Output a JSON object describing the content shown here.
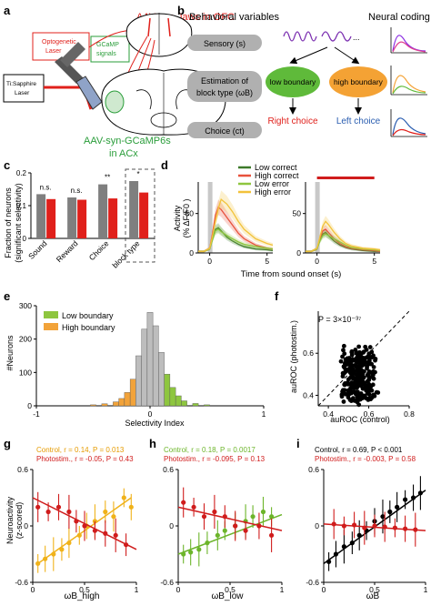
{
  "panels": {
    "a": {
      "letter": "a",
      "ofc_label": "AAV-syn-Jaws in OFC",
      "opto_line1": "Optogenetic",
      "opto_line2": "Laser",
      "gcamp_line1": "GCaMP",
      "gcamp_line2": "signals",
      "laser_line1": "Ti:Sapphire",
      "laser_line2": "Laser",
      "acx_line1": "AAV-syn-GCaMP6s",
      "acx_line2": "in ACx"
    },
    "b": {
      "letter": "b",
      "title_left": "Behavioral variables",
      "title_right": "Neural coding",
      "sensory": "Sensory (s)",
      "estimation_line1": "Estimation of",
      "estimation_line2": "block type (ωB)",
      "choice": "Choice (ct)",
      "low_boundary": "low boundary",
      "high_boundary": "high boundary",
      "right_choice": "Right choice",
      "left_choice": "Left choice",
      "ellipsis": "..."
    },
    "c": {
      "letter": "c",
      "ylabel_line1": "Fraction of neurons",
      "ylabel_line2": "(significant selectivity)"
    },
    "d": {
      "letter": "d",
      "ylabel_line1": "Activity",
      "ylabel_line2": "(% ΔF/F0 )",
      "xlabel": "Time from sound onset (s)"
    },
    "e": {
      "letter": "e",
      "ylabel": "#Neurons",
      "xlabel": "Selectivity Index"
    },
    "f": {
      "letter": "f",
      "ylabel": "auROC (photostim.)",
      "xlabel": "auROC (control)",
      "pvalue": "P = 3×10⁻³⁷"
    },
    "g": {
      "letter": "g",
      "ylabel_line1": "Neuroactivity",
      "ylabel_line2": "(z-scored)",
      "control_stats": "Control, r = 0.14, P = 0.013",
      "photostim_stats": "Photostim., r = -0.05, P = 0.43",
      "xlabel": "ωB_high"
    },
    "h": {
      "letter": "h",
      "control_stats": "Control, r = 0.18, P = 0.0017",
      "photostim_stats": "Photostim., r = -0.095, P = 0.13",
      "xlabel": "ωB_low"
    },
    "i": {
      "letter": "i",
      "control_stats": "Control, r = 0.69, P < 0.001",
      "photostim_stats": "Photostim., r = -0.003, P = 0.58",
      "xlabel": "ωB"
    }
  },
  "colors": {
    "red": "#e0201b",
    "green": "#2a9d3a",
    "gray": "#8c8c8c",
    "dark_green": "#3d7a2a",
    "light_green": "#8ec63f",
    "orange": "#f2a33a",
    "yellow": "#f7c21a"
  },
  "chart_data": [
    {
      "id": "c",
      "type": "bar",
      "categories": [
        "Sound",
        "Reward",
        "Choice",
        "block type"
      ],
      "ylim": [
        0,
        0.2
      ],
      "yticks": [
        0,
        0.1,
        0.2
      ],
      "series": [
        {
          "name": "control",
          "values": [
            0.135,
            0.125,
            0.165,
            0.175
          ],
          "color": "#7f7f7f"
        },
        {
          "name": "photostim.",
          "values": [
            0.12,
            0.118,
            0.122,
            0.14
          ],
          "color": "#e0201b"
        }
      ],
      "significance": [
        "n.s.",
        "n.s.",
        "**",
        "*"
      ]
    },
    {
      "id": "d",
      "type": "line",
      "xlim": [
        -1,
        5.5
      ],
      "ylim": [
        0,
        90
      ],
      "xticks": [
        0,
        5
      ],
      "yticks": [
        0,
        50
      ],
      "legend": [
        "Low correct",
        "High correct",
        "Low error",
        "High error"
      ],
      "legend_colors": [
        "#3d7a2a",
        "#e8523c",
        "#8ec63f",
        "#f2c23a"
      ],
      "subplots": [
        {
          "x": [
            -1,
            -0.5,
            0,
            0.25,
            0.5,
            0.75,
            1,
            1.5,
            2,
            2.5,
            3,
            4,
            5,
            5.5
          ],
          "series": [
            {
              "name": "Low correct",
              "values": [
                2,
                2,
                5,
                18,
                30,
                32,
                28,
                20,
                15,
                11,
                8,
                5,
                4,
                3
              ]
            },
            {
              "name": "High correct",
              "values": [
                2,
                2,
                6,
                25,
                48,
                58,
                55,
                45,
                35,
                25,
                18,
                10,
                6,
                5
              ]
            },
            {
              "name": "Low error",
              "values": [
                2,
                2,
                5,
                17,
                28,
                30,
                27,
                22,
                18,
                14,
                11,
                8,
                6,
                5
              ]
            },
            {
              "name": "High error",
              "values": [
                2,
                2,
                6,
                22,
                40,
                56,
                68,
                62,
                52,
                40,
                30,
                18,
                12,
                10
              ]
            }
          ]
        },
        {
          "x": [
            -1,
            -0.5,
            0,
            0.25,
            0.5,
            0.75,
            1,
            1.5,
            2,
            2.5,
            3,
            4,
            5,
            5.5
          ],
          "series": [
            {
              "name": "Low correct",
              "values": [
                2,
                2,
                5,
                16,
                24,
                26,
                22,
                15,
                10,
                7,
                5,
                3,
                2,
                2
              ]
            },
            {
              "name": "High correct",
              "values": [
                2,
                2,
                5,
                18,
                28,
                30,
                26,
                18,
                12,
                8,
                6,
                4,
                3,
                2
              ]
            },
            {
              "name": "Low error",
              "values": [
                2,
                2,
                5,
                15,
                22,
                24,
                22,
                18,
                14,
                10,
                7,
                5,
                4,
                3
              ]
            },
            {
              "name": "High error",
              "values": [
                2,
                2,
                6,
                20,
                34,
                40,
                36,
                26,
                18,
                12,
                9,
                6,
                5,
                4
              ]
            }
          ],
          "stim_bar": [
            0,
            5
          ]
        }
      ]
    },
    {
      "id": "e",
      "type": "bar",
      "xlim": [
        -1,
        1
      ],
      "ylim": [
        0,
        300
      ],
      "xticks": [
        -1,
        0,
        1
      ],
      "yticks": [
        0,
        100,
        200,
        300
      ],
      "legend": [
        "Low boundary",
        "High boundary"
      ],
      "legend_colors": [
        "#8ec63f",
        "#f2a33a"
      ],
      "bin_centers": [
        -0.5,
        -0.4,
        -0.3,
        -0.25,
        -0.2,
        -0.15,
        -0.1,
        -0.05,
        0,
        0.05,
        0.1,
        0.15,
        0.2,
        0.25,
        0.3,
        0.4,
        0.5
      ],
      "counts": [
        3,
        6,
        12,
        22,
        40,
        80,
        150,
        230,
        280,
        240,
        160,
        95,
        55,
        30,
        15,
        7,
        3
      ],
      "significant": [
        "high",
        "high",
        "high",
        "high",
        "high",
        "high",
        "",
        "",
        "",
        "",
        "",
        "low",
        "low",
        "low",
        "low",
        "low",
        "low"
      ]
    },
    {
      "id": "f",
      "type": "scatter",
      "xlim": [
        0.35,
        0.8
      ],
      "ylim": [
        0.35,
        0.8
      ],
      "xticks": [
        0.4,
        0.6,
        0.8
      ],
      "yticks": [
        0.4,
        0.6
      ],
      "identity_line": true
    },
    {
      "id": "g",
      "type": "scatter",
      "xlim": [
        0,
        1
      ],
      "ylim": [
        -0.6,
        0.6
      ],
      "xticks": [
        0,
        0.5,
        1
      ],
      "yticks": [
        -0.6,
        0,
        0.6
      ],
      "series": [
        {
          "name": "Control",
          "color": "#f0b21a",
          "x": [
            0.05,
            0.12,
            0.2,
            0.28,
            0.35,
            0.45,
            0.52,
            0.6,
            0.7,
            0.78,
            0.88,
            0.95
          ],
          "y": [
            -0.4,
            -0.35,
            -0.3,
            -0.25,
            -0.18,
            -0.1,
            0.0,
            0.05,
            0.15,
            0.1,
            0.3,
            0.2
          ],
          "fit": [
            [
              0.05,
              -0.4
            ],
            [
              0.95,
              0.3
            ]
          ]
        },
        {
          "name": "Photostim.",
          "color": "#d01c1c",
          "x": [
            0.05,
            0.15,
            0.25,
            0.35,
            0.42,
            0.5,
            0.6,
            0.7,
            0.8,
            0.9
          ],
          "y": [
            0.2,
            0.15,
            0.2,
            0.15,
            0.05,
            0.0,
            -0.05,
            -0.08,
            -0.1,
            -0.2
          ],
          "fit": [
            [
              0.0,
              0.3
            ],
            [
              1.0,
              -0.25
            ]
          ]
        }
      ]
    },
    {
      "id": "h",
      "type": "scatter",
      "xlim": [
        0,
        1
      ],
      "ylim": [
        -0.6,
        0.6
      ],
      "xticks": [
        0,
        0.5,
        1
      ],
      "yticks": [
        -0.6,
        0,
        0.6
      ],
      "series": [
        {
          "name": "Control",
          "color": "#6cb52a",
          "x": [
            0.05,
            0.12,
            0.2,
            0.28,
            0.38,
            0.45,
            0.55,
            0.65,
            0.72,
            0.82,
            0.9
          ],
          "y": [
            -0.3,
            -0.28,
            -0.25,
            -0.18,
            -0.1,
            -0.05,
            0.0,
            0.05,
            0.1,
            0.15,
            0.1
          ],
          "fit": [
            [
              0.0,
              -0.3
            ],
            [
              1.0,
              0.12
            ]
          ]
        },
        {
          "name": "Photostim.",
          "color": "#d01c1c",
          "x": [
            0.05,
            0.15,
            0.25,
            0.35,
            0.45,
            0.55,
            0.65,
            0.78,
            0.9
          ],
          "y": [
            0.25,
            0.2,
            0.1,
            0.15,
            0.1,
            0.0,
            -0.05,
            0.0,
            -0.1
          ],
          "fit": [
            [
              0.0,
              0.2
            ],
            [
              1.0,
              -0.05
            ]
          ]
        }
      ]
    },
    {
      "id": "i",
      "type": "scatter",
      "xlim": [
        0,
        1
      ],
      "ylim": [
        -0.6,
        0.6
      ],
      "xticks": [
        0,
        0.5,
        1
      ],
      "yticks": [
        -0.6,
        0,
        0.6
      ],
      "series": [
        {
          "name": "Control",
          "color": "#000000",
          "x": [
            0.05,
            0.12,
            0.2,
            0.28,
            0.35,
            0.42,
            0.5,
            0.58,
            0.65,
            0.72,
            0.8,
            0.88,
            0.95
          ],
          "y": [
            -0.38,
            -0.3,
            -0.22,
            -0.18,
            -0.1,
            -0.05,
            0.05,
            0.1,
            0.15,
            0.2,
            0.28,
            0.3,
            0.35
          ],
          "fit": [
            [
              0.0,
              -0.4
            ],
            [
              1.0,
              0.38
            ]
          ]
        },
        {
          "name": "Photostim.",
          "color": "#d01c1c",
          "x": [
            0.1,
            0.2,
            0.3,
            0.4,
            0.5,
            0.6,
            0.7,
            0.8,
            0.9
          ],
          "y": [
            0.02,
            0.0,
            0.01,
            -0.02,
            0.0,
            -0.01,
            -0.02,
            -0.03,
            -0.04
          ],
          "fit": [
            [
              0.0,
              0.02
            ],
            [
              1.0,
              -0.05
            ]
          ]
        }
      ]
    }
  ]
}
